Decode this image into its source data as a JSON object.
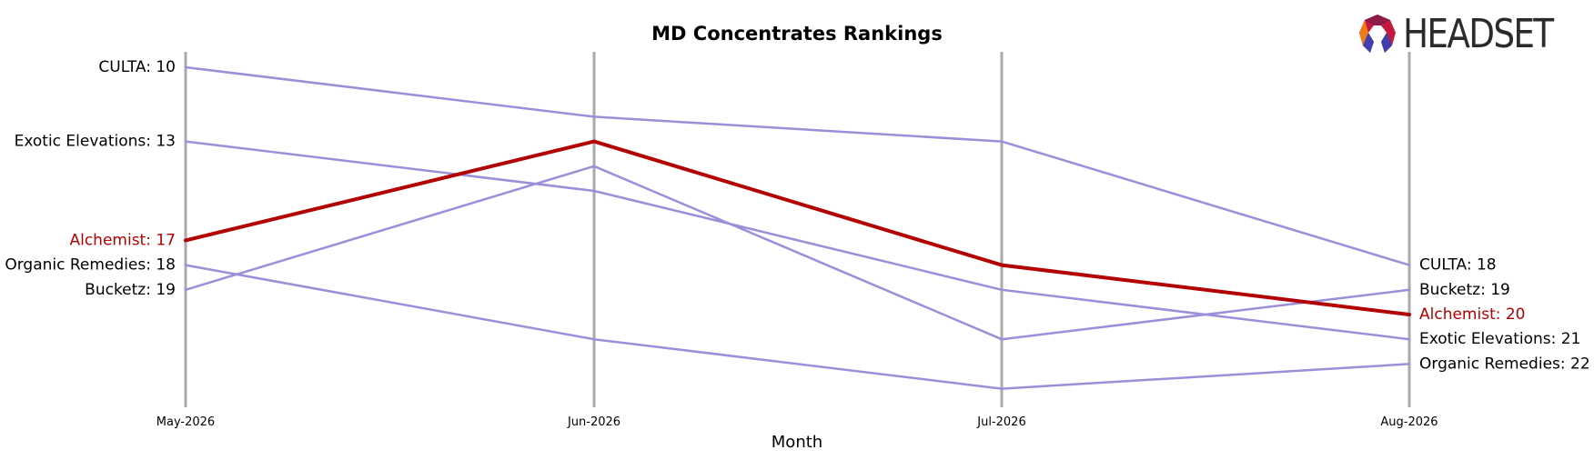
{
  "title": "MD Concentrates Rankings",
  "logo_text": "HEADSET",
  "chart_data": {
    "type": "line",
    "title": "MD Concentrates Rankings",
    "xlabel": "Month",
    "ylabel": "",
    "categories": [
      "May-2026",
      "Jun-2026",
      "Jul-2026",
      "Aug-2026"
    ],
    "y_inverted": true,
    "ylim": [
      23,
      9.4
    ],
    "grid": false,
    "highlight": "Alchemist",
    "colors": {
      "highlight": "#b30000",
      "other": "#9b8fda",
      "axis": "#aaaaaa",
      "label": "#000000"
    },
    "series": [
      {
        "name": "CULTA",
        "values": [
          10,
          12,
          13,
          18
        ]
      },
      {
        "name": "Exotic Elevations",
        "values": [
          13,
          15,
          19,
          21
        ]
      },
      {
        "name": "Organic Remedies",
        "values": [
          18,
          21,
          23,
          22
        ]
      },
      {
        "name": "Bucketz",
        "values": [
          19,
          14,
          21,
          19
        ]
      },
      {
        "name": "Alchemist",
        "values": [
          17,
          13,
          18,
          20
        ]
      }
    ],
    "start_labels": [
      {
        "series": "CULTA",
        "text": "CULTA: 10"
      },
      {
        "series": "Exotic Elevations",
        "text": "Exotic Elevations: 13"
      },
      {
        "series": "Alchemist",
        "text": "Alchemist: 17"
      },
      {
        "series": "Organic Remedies",
        "text": "Organic Remedies: 18"
      },
      {
        "series": "Bucketz",
        "text": "Bucketz: 19"
      }
    ],
    "end_labels": [
      {
        "series": "CULTA",
        "text": "CULTA: 18"
      },
      {
        "series": "Bucketz",
        "text": "Bucketz: 19"
      },
      {
        "series": "Alchemist",
        "text": "Alchemist: 20"
      },
      {
        "series": "Exotic Elevations",
        "text": "Exotic Elevations: 21"
      },
      {
        "series": "Organic Remedies",
        "text": "Organic Remedies: 22"
      }
    ]
  }
}
